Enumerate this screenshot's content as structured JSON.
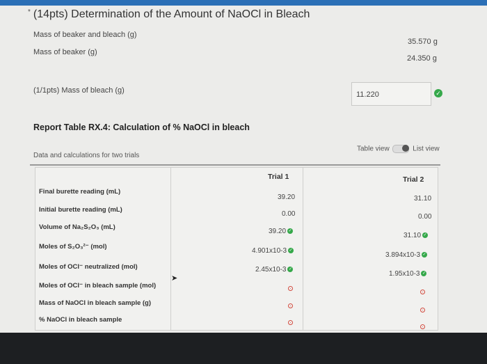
{
  "title": "(14pts) Determination of the Amount of NaOCl in Bleach",
  "title_marker": "*",
  "mass_beaker_bleach": {
    "label": "Mass of beaker and bleach (g)",
    "value": "35.570 g"
  },
  "mass_beaker": {
    "label": "Mass of beaker (g)",
    "value": "24.350 g"
  },
  "mass_bleach": {
    "label": "(1/1pts)  Mass of bleach (g)",
    "value": "11.220"
  },
  "report_heading": "Report Table RX.4: Calculation of % NaOCl in bleach",
  "subheading": "Data and calculations for two trials",
  "view_toggle": {
    "left": "Table view",
    "right": "List view"
  },
  "table": {
    "headers": [
      "Trial 1",
      "Trial 2"
    ],
    "rows": [
      {
        "label": "Final burette reading (mL)",
        "t1": "39.20",
        "t2": "31.10"
      },
      {
        "label": "Initial burette reading (mL)",
        "t1": "0.00",
        "t2": "0.00"
      },
      {
        "label": "Volume of Na₂S₂O₃ (mL)",
        "t1": "39.20",
        "t2": "31.10"
      },
      {
        "label": "Moles of S₂O₃²⁻ (mol)",
        "t1": "4.901x10-3",
        "t2": "3.894x10-3"
      },
      {
        "label": "Moles of OCl⁻ neutralized (mol)",
        "t1": "2.45x10-3",
        "t2": "1.95x10-3"
      },
      {
        "label": "Moles of OCl⁻ in bleach sample (mol)",
        "t1": "",
        "t2": ""
      },
      {
        "label": "Mass of NaOCl in bleach sample (g)",
        "t1": "",
        "t2": ""
      },
      {
        "label": "% NaOCl in bleach sample",
        "t1": "",
        "t2": ""
      }
    ]
  },
  "colors": {
    "correct": "#35a84a",
    "pending": "#d24a3e",
    "topbar": "#2b6fb6"
  }
}
